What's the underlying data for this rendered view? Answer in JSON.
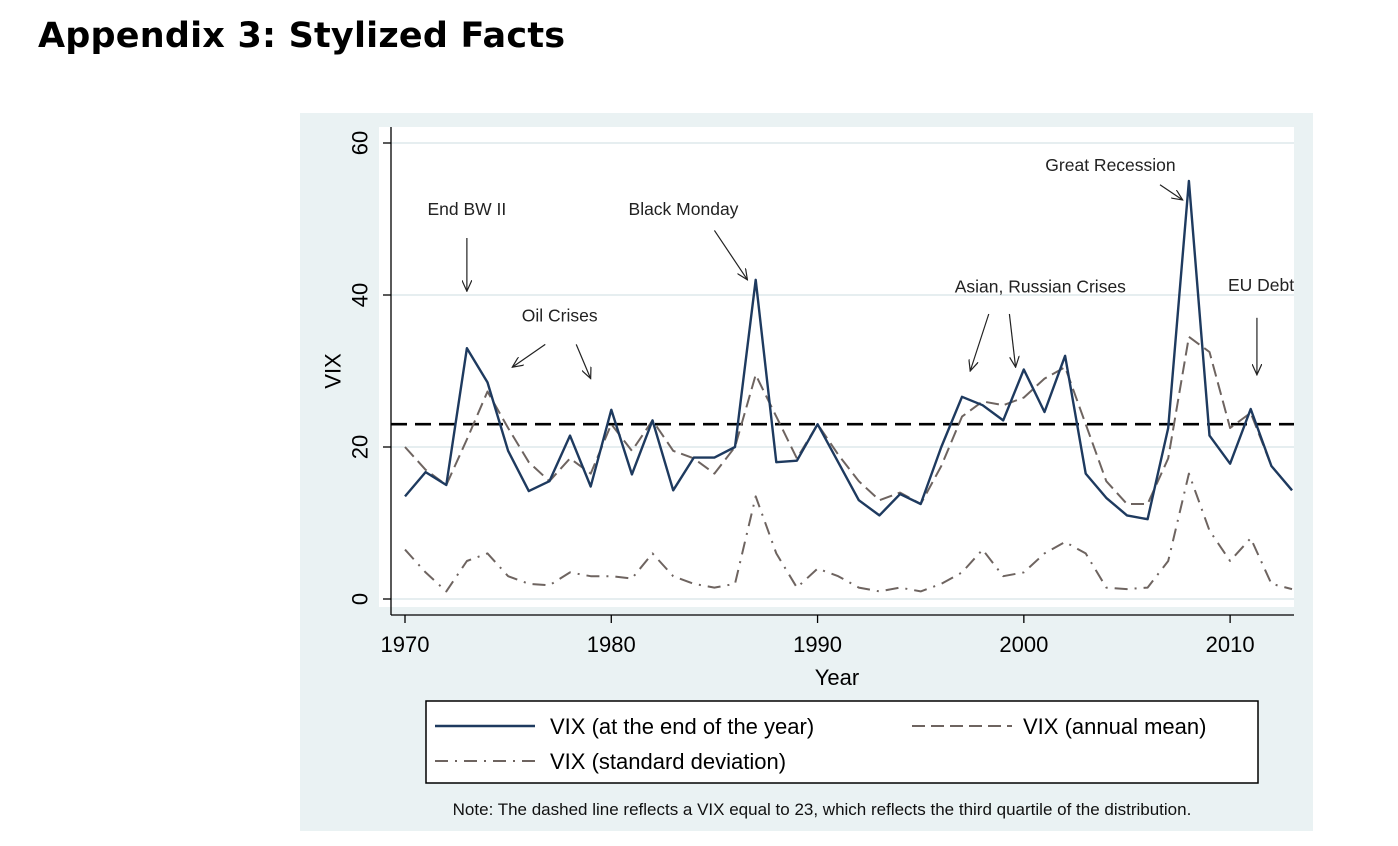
{
  "heading": "Appendix 3: Stylized Facts",
  "chart_data": {
    "type": "line",
    "xlabel": "Year",
    "ylabel": "VIX",
    "xlim": [
      1970,
      2013
    ],
    "ylim": [
      0,
      60
    ],
    "xticks": [
      1970,
      1980,
      1990,
      2000,
      2010
    ],
    "yticks": [
      0,
      20,
      40,
      60
    ],
    "grid": "horizontal",
    "reference_line": {
      "y": 23
    },
    "x": [
      1970,
      1971,
      1972,
      1973,
      1974,
      1975,
      1976,
      1977,
      1978,
      1979,
      1980,
      1981,
      1982,
      1983,
      1984,
      1985,
      1986,
      1987,
      1988,
      1989,
      1990,
      1991,
      1992,
      1993,
      1994,
      1995,
      1996,
      1997,
      1998,
      1999,
      2000,
      2001,
      2002,
      2003,
      2004,
      2005,
      2006,
      2007,
      2008,
      2009,
      2010,
      2011,
      2012,
      2013
    ],
    "series": [
      {
        "name": "VIX (at the end of the year)",
        "color": "#1e3a5f",
        "dash": "solid",
        "values": [
          13.5,
          16.7,
          15.0,
          33.0,
          28.5,
          19.5,
          14.2,
          15.5,
          21.5,
          14.8,
          24.9,
          16.4,
          23.5,
          14.3,
          18.6,
          18.6,
          20.0,
          42.0,
          18.0,
          18.2,
          23.0,
          18.0,
          13.0,
          11.0,
          13.8,
          12.5,
          20.0,
          26.6,
          25.5,
          23.5,
          30.2,
          24.6,
          32.0,
          16.5,
          13.3,
          11.0,
          10.5,
          22.5,
          55.0,
          21.5,
          17.8,
          25.0,
          17.5,
          14.3
        ]
      },
      {
        "name": "VIX (annual mean)",
        "color": "#6e6460",
        "dash": "long-dash",
        "values": [
          20.0,
          17.0,
          15.0,
          21.0,
          27.3,
          22.5,
          18.0,
          15.5,
          18.5,
          16.5,
          23.0,
          19.5,
          23.5,
          19.5,
          18.5,
          16.5,
          20.0,
          29.5,
          24.0,
          18.5,
          23.0,
          19.0,
          15.5,
          13.0,
          14.0,
          12.5,
          17.5,
          24.0,
          26.0,
          25.5,
          26.5,
          29.0,
          30.5,
          23.0,
          15.5,
          12.5,
          12.5,
          18.5,
          34.5,
          32.5,
          22.5,
          24.5,
          17.5,
          14.3
        ]
      },
      {
        "name": "VIX (standard deviation)",
        "color": "#6e6460",
        "dash": "dash-dot",
        "values": [
          6.5,
          3.5,
          1.0,
          5.0,
          6.0,
          3.0,
          2.0,
          1.8,
          3.5,
          3.0,
          3.0,
          2.7,
          6.0,
          3.0,
          2.0,
          1.5,
          2.0,
          13.5,
          6.0,
          1.5,
          4.0,
          3.0,
          1.5,
          1.0,
          1.5,
          1.0,
          2.0,
          3.5,
          6.5,
          3.0,
          3.5,
          6.0,
          7.5,
          6.0,
          1.5,
          1.3,
          1.5,
          5.0,
          16.5,
          9.0,
          5.0,
          8.0,
          2.0,
          1.3
        ]
      }
    ],
    "annotations": [
      {
        "text": "End BW II",
        "x": 1973,
        "y": 50.5,
        "arrow_from": [
          1973,
          47.5
        ],
        "arrow_to": [
          1973,
          40.5
        ]
      },
      {
        "text": "Oil Crises",
        "x": 1977.5,
        "y": 36.5,
        "arrow_from": [
          1976.8,
          33.5
        ],
        "arrow_to": [
          1975.2,
          30.5
        ]
      },
      {
        "text": "",
        "x": 1978.5,
        "y": 33,
        "arrow_from": [
          1978.3,
          33.5
        ],
        "arrow_to": [
          1979.0,
          29.0
        ]
      },
      {
        "text": "Black Monday",
        "x": 1983.5,
        "y": 50.5,
        "arrow_from": [
          1985.0,
          48.5
        ],
        "arrow_to": [
          1986.6,
          42.0
        ]
      },
      {
        "text": "Asian, Russian Crises",
        "x": 2000.8,
        "y": 40.3,
        "arrow_from": [
          1998.3,
          37.5
        ],
        "arrow_to": [
          1997.4,
          30.0
        ]
      },
      {
        "text": "",
        "x": 2000,
        "y": 37,
        "arrow_from": [
          1999.3,
          37.5
        ],
        "arrow_to": [
          1999.6,
          30.5
        ]
      },
      {
        "text": "Great Recession",
        "x": 2004.2,
        "y": 56.3,
        "arrow_from": [
          2006.6,
          54.5
        ],
        "arrow_to": [
          2007.7,
          52.5
        ]
      },
      {
        "text": "EU Debt",
        "x": 2011.5,
        "y": 40.5,
        "arrow_from": [
          2011.3,
          37.0
        ],
        "arrow_to": [
          2011.3,
          29.5
        ]
      }
    ],
    "legend": {
      "placement": "bottom",
      "entries": [
        "VIX (at the end of the year)",
        "VIX (annual mean)",
        "VIX (standard deviation)"
      ]
    },
    "note": "Note: The dashed line reflects a VIX equal to 23, which reflects the third quartile of the distribution."
  }
}
